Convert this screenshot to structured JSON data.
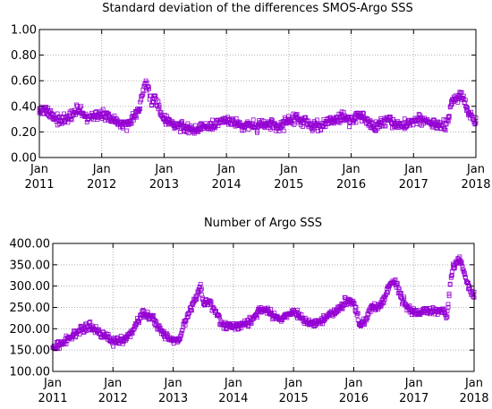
{
  "chart_data": [
    {
      "type": "scatter",
      "title": "Standard deviation of the differences SMOS-Argo SSS",
      "xlabel": "",
      "ylabel": "",
      "ylim": [
        0.0,
        1.0
      ],
      "xlim": [
        2011.0,
        2018.0
      ],
      "grid": true,
      "color": "#9400d3",
      "marker": "open-square",
      "yticks": [
        "0.00",
        "0.20",
        "0.40",
        "0.60",
        "0.80",
        "1.00"
      ],
      "xticks": [
        {
          "line1": "Jan",
          "line2": "2011"
        },
        {
          "line1": "Jan",
          "line2": "2012"
        },
        {
          "line1": "Jan",
          "line2": "2013"
        },
        {
          "line1": "Jan",
          "line2": "2014"
        },
        {
          "line1": "Jan",
          "line2": "2015"
        },
        {
          "line1": "Jan",
          "line2": "2016"
        },
        {
          "line1": "Jan",
          "line2": "2017"
        },
        {
          "line1": "Jan",
          "line2": "2018"
        }
      ],
      "trend": {
        "x": [
          2011.0,
          2011.1,
          2011.2,
          2011.3,
          2011.4,
          2011.5,
          2011.6,
          2011.7,
          2011.8,
          2011.9,
          2012.0,
          2012.1,
          2012.2,
          2012.3,
          2012.4,
          2012.5,
          2012.6,
          2012.65,
          2012.7,
          2012.75,
          2012.8,
          2012.85,
          2012.9,
          2012.95,
          2013.0,
          2013.1,
          2013.2,
          2013.3,
          2013.4,
          2013.5,
          2013.6,
          2013.7,
          2013.8,
          2013.9,
          2014.0,
          2014.1,
          2014.2,
          2014.3,
          2014.4,
          2014.5,
          2014.6,
          2014.7,
          2014.8,
          2014.9,
          2015.0,
          2015.1,
          2015.2,
          2015.3,
          2015.4,
          2015.5,
          2015.6,
          2015.7,
          2015.8,
          2015.9,
          2016.0,
          2016.1,
          2016.2,
          2016.3,
          2016.4,
          2016.5,
          2016.6,
          2016.7,
          2016.8,
          2016.9,
          2017.0,
          2017.1,
          2017.2,
          2017.3,
          2017.4,
          2017.5,
          2017.55,
          2017.6,
          2017.65,
          2017.7,
          2017.75,
          2017.8,
          2017.85,
          2017.9,
          2017.95,
          2018.0
        ],
        "y": [
          0.38,
          0.36,
          0.33,
          0.3,
          0.29,
          0.32,
          0.37,
          0.35,
          0.3,
          0.34,
          0.33,
          0.32,
          0.29,
          0.26,
          0.25,
          0.3,
          0.4,
          0.49,
          0.58,
          0.55,
          0.42,
          0.48,
          0.4,
          0.33,
          0.3,
          0.27,
          0.26,
          0.24,
          0.23,
          0.22,
          0.24,
          0.25,
          0.24,
          0.27,
          0.3,
          0.28,
          0.26,
          0.25,
          0.25,
          0.24,
          0.26,
          0.25,
          0.24,
          0.25,
          0.3,
          0.31,
          0.29,
          0.26,
          0.25,
          0.24,
          0.27,
          0.29,
          0.31,
          0.32,
          0.28,
          0.33,
          0.3,
          0.26,
          0.25,
          0.27,
          0.29,
          0.26,
          0.25,
          0.27,
          0.29,
          0.3,
          0.28,
          0.26,
          0.25,
          0.24,
          0.27,
          0.42,
          0.46,
          0.44,
          0.5,
          0.46,
          0.38,
          0.34,
          0.3,
          0.28
        ],
        "noise": 0.035,
        "samples": 460
      }
    },
    {
      "type": "scatter",
      "title": "Number of Argo SSS",
      "xlabel": "",
      "ylabel": "",
      "ylim": [
        100.0,
        400.0
      ],
      "xlim": [
        2011.0,
        2018.0
      ],
      "grid": true,
      "color": "#9400d3",
      "marker": "open-square",
      "yticks": [
        "100.00",
        "150.00",
        "200.00",
        "250.00",
        "300.00",
        "350.00",
        "400.00"
      ],
      "xticks": [
        {
          "line1": "Jan",
          "line2": "2011"
        },
        {
          "line1": "Jan",
          "line2": "2012"
        },
        {
          "line1": "Jan",
          "line2": "2013"
        },
        {
          "line1": "Jan",
          "line2": "2014"
        },
        {
          "line1": "Jan",
          "line2": "2015"
        },
        {
          "line1": "Jan",
          "line2": "2016"
        },
        {
          "line1": "Jan",
          "line2": "2017"
        },
        {
          "line1": "Jan",
          "line2": "2018"
        }
      ],
      "trend": {
        "x": [
          2011.0,
          2011.1,
          2011.2,
          2011.3,
          2011.4,
          2011.5,
          2011.6,
          2011.7,
          2011.8,
          2011.9,
          2012.0,
          2012.1,
          2012.2,
          2012.3,
          2012.4,
          2012.5,
          2012.6,
          2012.7,
          2012.8,
          2012.9,
          2013.0,
          2013.1,
          2013.2,
          2013.3,
          2013.4,
          2013.45,
          2013.5,
          2013.6,
          2013.7,
          2013.8,
          2013.9,
          2014.0,
          2014.1,
          2014.2,
          2014.3,
          2014.4,
          2014.5,
          2014.6,
          2014.7,
          2014.8,
          2014.9,
          2015.0,
          2015.1,
          2015.2,
          2015.3,
          2015.4,
          2015.5,
          2015.6,
          2015.7,
          2015.8,
          2015.9,
          2016.0,
          2016.1,
          2016.2,
          2016.3,
          2016.4,
          2016.5,
          2016.6,
          2016.7,
          2016.8,
          2016.9,
          2017.0,
          2017.1,
          2017.2,
          2017.3,
          2017.4,
          2017.5,
          2017.55,
          2017.6,
          2017.65,
          2017.7,
          2017.75,
          2017.8,
          2017.85,
          2017.9,
          2017.95,
          2018.0
        ],
        "y": [
          160,
          162,
          170,
          182,
          192,
          200,
          204,
          200,
          188,
          178,
          172,
          170,
          175,
          190,
          215,
          235,
          228,
          218,
          195,
          178,
          170,
          176,
          218,
          245,
          280,
          305,
          260,
          262,
          245,
          212,
          208,
          205,
          208,
          212,
          218,
          240,
          246,
          240,
          225,
          226,
          232,
          240,
          232,
          220,
          212,
          216,
          224,
          232,
          240,
          254,
          268,
          262,
          210,
          218,
          255,
          248,
          270,
          305,
          310,
          270,
          250,
          240,
          236,
          244,
          242,
          236,
          240,
          232,
          300,
          345,
          350,
          365,
          350,
          320,
          300,
          285,
          280
        ],
        "noise": 8,
        "samples": 440
      }
    }
  ]
}
